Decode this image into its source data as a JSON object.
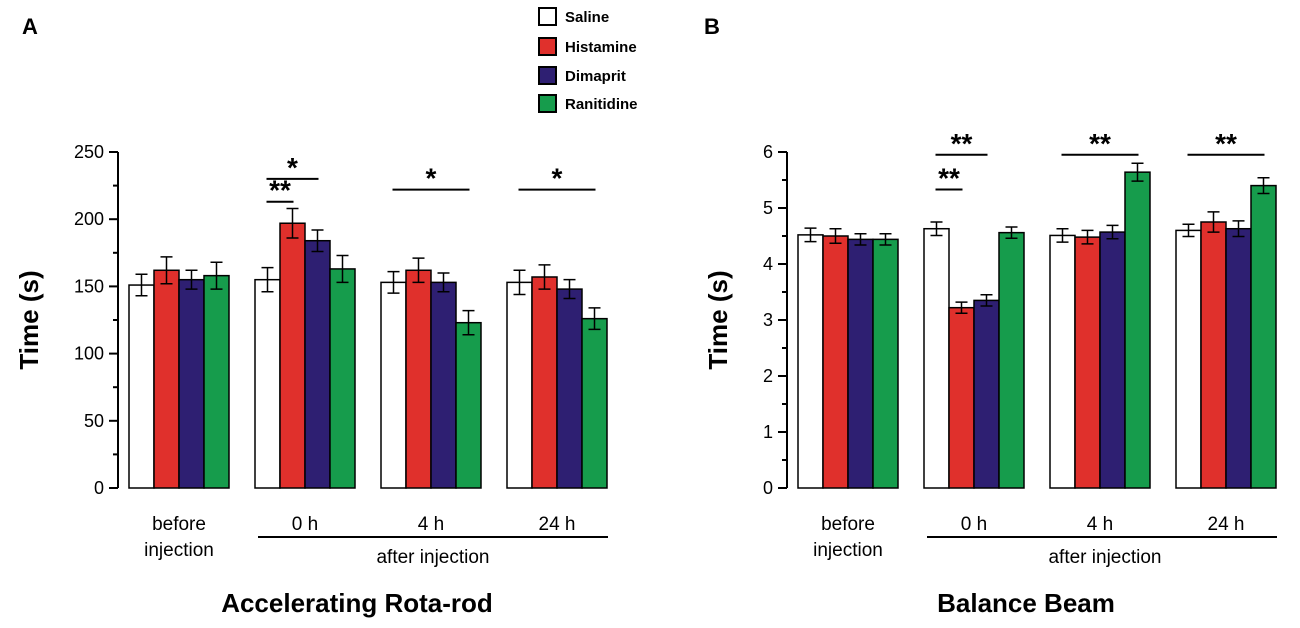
{
  "legend": {
    "series": [
      "Saline",
      "Histamine",
      "Dimaprit",
      "Ranitidine"
    ],
    "colors": [
      "#ffffff",
      "#e0302c",
      "#2e1f72",
      "#169c4c"
    ]
  },
  "chart_data": [
    {
      "type": "bar",
      "panel": "A",
      "title": "Accelerating Rota-rod",
      "ylabel": "Time (s)",
      "xlabel": "",
      "ylim": [
        0,
        250
      ],
      "yticks": [
        0,
        50,
        100,
        150,
        200,
        250
      ],
      "tick_labels": [
        "0",
        "50",
        "100",
        "150",
        "200",
        "250"
      ],
      "categories": [
        "before injection",
        "0 h",
        "4 h",
        "24 h"
      ],
      "category_lines": [
        [
          "before",
          "injection"
        ],
        [
          "0 h"
        ],
        [
          "4 h"
        ],
        [
          "24 h"
        ]
      ],
      "group_label": "after injection",
      "series": [
        {
          "name": "Saline",
          "values": [
            151,
            155,
            153,
            153
          ],
          "errors": [
            8,
            9,
            8,
            9
          ]
        },
        {
          "name": "Histamine",
          "values": [
            162,
            197,
            162,
            157
          ],
          "errors": [
            10,
            11,
            9,
            9
          ]
        },
        {
          "name": "Dimaprit",
          "values": [
            155,
            184,
            153,
            148
          ],
          "errors": [
            7,
            8,
            7,
            7
          ]
        },
        {
          "name": "Ranitidine",
          "values": [
            158,
            163,
            123,
            126
          ],
          "errors": [
            10,
            10,
            9,
            8
          ]
        }
      ],
      "significance": [
        {
          "group": 1,
          "from": 0,
          "to": 2,
          "level": 230,
          "text": "*"
        },
        {
          "group": 1,
          "from": 0,
          "to": 1,
          "level": 213,
          "text": "**"
        },
        {
          "group": 2,
          "from": 0,
          "to": 3,
          "level": 222,
          "text": "*"
        },
        {
          "group": 3,
          "from": 0,
          "to": 3,
          "level": 222,
          "text": "*"
        }
      ]
    },
    {
      "type": "bar",
      "panel": "B",
      "title": "Balance Beam",
      "ylabel": "Time (s)",
      "xlabel": "",
      "ylim": [
        0,
        6
      ],
      "yticks": [
        0,
        1,
        2,
        3,
        4,
        5,
        6
      ],
      "tick_labels": [
        "0",
        "1",
        "2",
        "3",
        "4",
        "5",
        "6"
      ],
      "categories": [
        "before injection",
        "0 h",
        "4 h",
        "24 h"
      ],
      "category_lines": [
        [
          "before",
          "injection"
        ],
        [
          "0 h"
        ],
        [
          "4 h"
        ],
        [
          "24 h"
        ]
      ],
      "group_label": "after injection",
      "series": [
        {
          "name": "Saline",
          "values": [
            4.52,
            4.63,
            4.51,
            4.6
          ],
          "errors": [
            0.12,
            0.12,
            0.12,
            0.11
          ]
        },
        {
          "name": "Histamine",
          "values": [
            4.5,
            3.22,
            4.48,
            4.75
          ],
          "errors": [
            0.13,
            0.1,
            0.12,
            0.18
          ]
        },
        {
          "name": "Dimaprit",
          "values": [
            4.44,
            3.35,
            4.57,
            4.63
          ],
          "errors": [
            0.1,
            0.1,
            0.12,
            0.14
          ]
        },
        {
          "name": "Ranitidine",
          "values": [
            4.44,
            4.56,
            5.64,
            5.4
          ],
          "errors": [
            0.1,
            0.1,
            0.16,
            0.14
          ]
        }
      ],
      "significance": [
        {
          "group": 1,
          "from": 0,
          "to": 2,
          "level": 5.95,
          "text": "**"
        },
        {
          "group": 1,
          "from": 0,
          "to": 1,
          "level": 5.33,
          "text": "**"
        },
        {
          "group": 2,
          "from": 0,
          "to": 3,
          "level": 5.95,
          "text": "**"
        },
        {
          "group": 3,
          "from": 0,
          "to": 3,
          "level": 5.95,
          "text": "**"
        }
      ]
    }
  ]
}
